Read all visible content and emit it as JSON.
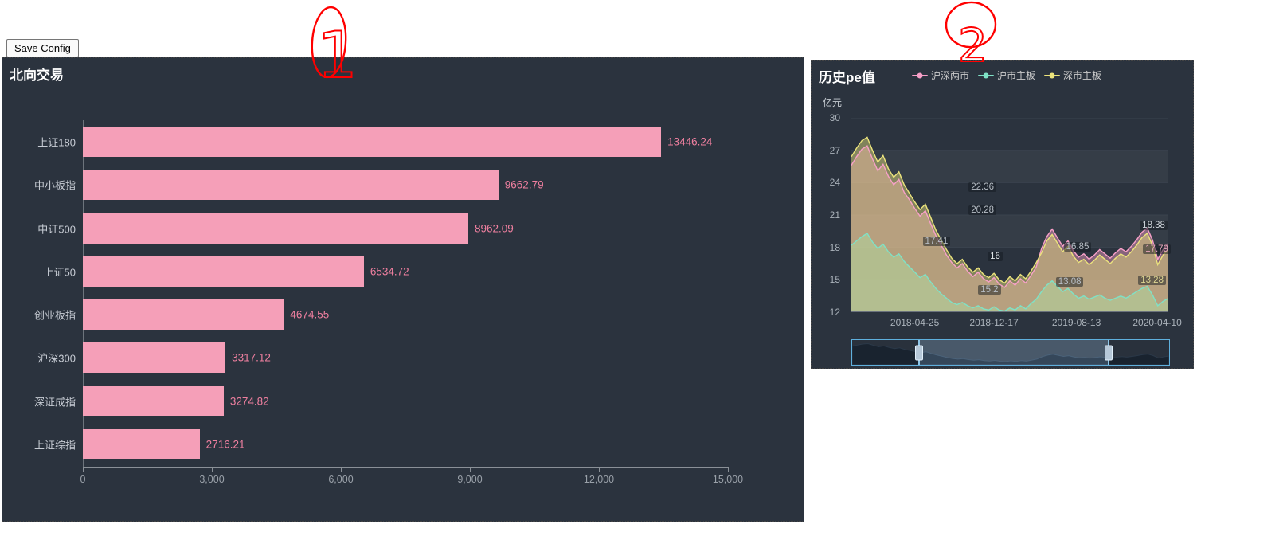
{
  "toolbar": {
    "save_button": "Save Config"
  },
  "annotations": {
    "color": "#ff0000",
    "one": {
      "label": "1"
    },
    "two": {
      "label": "2"
    }
  },
  "chart_data": [
    {
      "type": "bar",
      "orientation": "horizontal",
      "title": "北向交易",
      "categories": [
        "上证180",
        "中小板指",
        "中证500",
        "上证50",
        "创业板指",
        "沪深300",
        "深证成指",
        "上证综指"
      ],
      "values": [
        13446.24,
        9662.79,
        8962.09,
        6534.72,
        4674.55,
        3317.12,
        3274.82,
        2716.21
      ],
      "value_labels": [
        "13446.24",
        "9662.79",
        "8962.09",
        "6534.72",
        "4674.55",
        "3317.12",
        "3274.82",
        "2716.21"
      ],
      "xlim": [
        0,
        15000
      ],
      "x_ticks": [
        "0",
        "3,000",
        "6,000",
        "9,000",
        "12,000",
        "15,000"
      ],
      "grid": false,
      "colors": {
        "bar": "#f59fb8",
        "value_label": "#ee7f9f",
        "category_label": "#c7ccd4",
        "background": "#2b333e",
        "title": "#ffffff"
      }
    },
    {
      "type": "area",
      "title": "历史pe值",
      "y_unit_label": "亿元",
      "ylim": [
        12,
        30
      ],
      "y_ticks": [
        "30",
        "27",
        "24",
        "21",
        "18",
        "15",
        "12"
      ],
      "x_ticks": [
        "2018-04-25",
        "2018-12-17",
        "2019-08-13",
        "2020-04-10"
      ],
      "x_tick_positions": [
        0.2,
        0.45,
        0.71,
        0.965
      ],
      "legend_position": "top",
      "grid": true,
      "series": [
        {
          "name": "沪深两市",
          "color": "#f8a0c8",
          "values": [
            25.6,
            26.4,
            27.1,
            27.4,
            26.2,
            25.1,
            25.7,
            24.6,
            23.8,
            24.3,
            23.1,
            22.4,
            21.6,
            20.9,
            21.4,
            20.2,
            19.1,
            18.2,
            17.3,
            16.6,
            16.1,
            16.5,
            15.8,
            15.3,
            15.7,
            15.1,
            14.8,
            15.2,
            14.6,
            14.3,
            14.9,
            14.5,
            15.1,
            14.7,
            15.4,
            16.2,
            17.9,
            19.0,
            19.7,
            18.9,
            18.1,
            18.6,
            17.7,
            17.1,
            17.4,
            16.9,
            17.3,
            17.8,
            17.4,
            17.0,
            17.5,
            17.9,
            17.6,
            18.1,
            18.7,
            19.4,
            19.8,
            18.7,
            16.9,
            17.8,
            18.38
          ]
        },
        {
          "name": "沪市主板",
          "color": "#7fe2c6",
          "values": [
            18.2,
            18.6,
            19.0,
            19.3,
            18.5,
            17.9,
            18.3,
            17.6,
            17.1,
            17.4,
            16.7,
            16.2,
            15.7,
            15.2,
            15.5,
            14.8,
            14.2,
            13.7,
            13.3,
            12.9,
            12.7,
            12.9,
            12.6,
            12.4,
            12.6,
            12.3,
            12.2,
            12.5,
            12.2,
            12.1,
            12.4,
            12.2,
            12.6,
            12.3,
            12.8,
            13.2,
            13.9,
            14.5,
            14.9,
            14.4,
            13.9,
            14.2,
            13.7,
            13.3,
            13.5,
            13.2,
            13.4,
            13.6,
            13.3,
            13.1,
            13.3,
            13.5,
            13.3,
            13.6,
            13.9,
            14.2,
            14.4,
            13.6,
            12.6,
            13.0,
            13.28
          ]
        },
        {
          "name": "深市主板",
          "color": "#ece47c",
          "values": [
            26.4,
            27.2,
            27.9,
            28.2,
            27.0,
            25.9,
            26.5,
            25.3,
            24.5,
            25.0,
            23.8,
            23.0,
            22.2,
            21.5,
            22.0,
            20.8,
            19.6,
            18.7,
            17.8,
            17.0,
            16.5,
            16.9,
            16.2,
            15.7,
            16.1,
            15.5,
            15.2,
            15.6,
            15.0,
            14.7,
            15.3,
            14.9,
            15.5,
            15.1,
            15.8,
            16.6,
            17.5,
            18.6,
            19.2,
            18.4,
            17.6,
            18.1,
            17.2,
            16.6,
            16.9,
            16.4,
            16.8,
            17.3,
            16.9,
            16.5,
            17.0,
            17.4,
            17.1,
            17.6,
            18.2,
            18.9,
            19.3,
            18.2,
            16.4,
            17.3,
            17.79
          ]
        }
      ],
      "point_labels": [
        {
          "text": "22.36",
          "x_pct": 37,
          "y_pct": 33,
          "color": "#b7bec6"
        },
        {
          "text": "20.28",
          "x_pct": 37,
          "y_pct": 45,
          "color": "#b7bec6"
        },
        {
          "text": "17.41",
          "x_pct": 22.5,
          "y_pct": 61,
          "color": "#b7bec6"
        },
        {
          "text": "16",
          "x_pct": 43,
          "y_pct": 69,
          "color": "#dfe4e8"
        },
        {
          "text": "15.2",
          "x_pct": 40,
          "y_pct": 86,
          "color": "#b7bec6"
        },
        {
          "text": "16.85",
          "x_pct": 67,
          "y_pct": 64,
          "color": "#b7bec6"
        },
        {
          "text": "13.08",
          "x_pct": 64.5,
          "y_pct": 82,
          "color": "#b7bec6"
        },
        {
          "text": "18.38",
          "x_pct": 91,
          "y_pct": 53,
          "color": "#ccd2d8"
        },
        {
          "text": "17.79",
          "x_pct": 92,
          "y_pct": 65,
          "color": "#e8a7bc"
        },
        {
          "text": "13.28",
          "x_pct": 90.5,
          "y_pct": 81,
          "color": "#ded592"
        }
      ],
      "datazoom": {
        "start_pct": 21,
        "end_pct": 81
      },
      "colors": {
        "background": "#2b333e",
        "title": "#ffffff",
        "axis_label": "#aab2ba",
        "datazoom_border": "#5fb0dd"
      }
    }
  ]
}
